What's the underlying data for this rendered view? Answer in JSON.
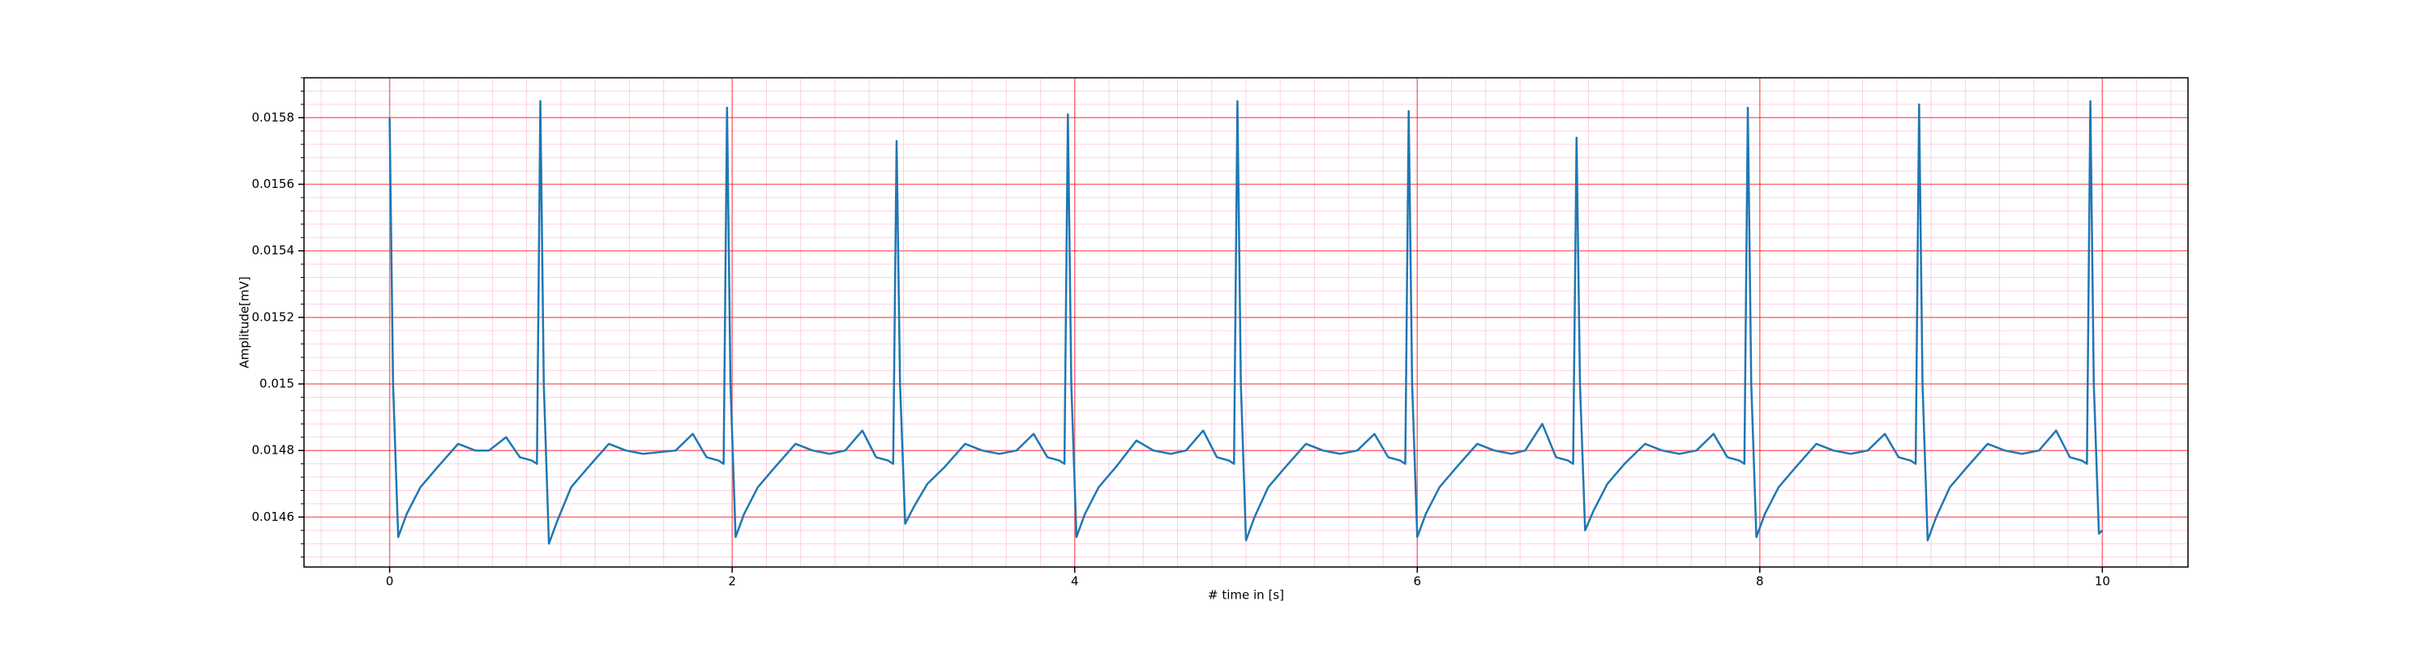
{
  "chart_data": {
    "type": "line",
    "xlabel": "# time in [s]",
    "ylabel": "Amplitude[mV]",
    "color": "#1f77b4",
    "grid": true,
    "grid_color": "#ff0000",
    "minor_grid_color": "#ffb0d0",
    "xlim": [
      -0.5,
      10.5
    ],
    "xticks": [
      0,
      2,
      4,
      6,
      8,
      10
    ],
    "ylim": [
      0.01445,
      0.01592
    ],
    "yticks": [
      0.0146,
      0.0148,
      0.015,
      0.0152,
      0.0154,
      0.0156,
      0.0158
    ],
    "x": [
      0,
      0.02,
      0.05,
      0.1,
      0.18,
      0.28,
      0.4,
      0.5,
      0.58,
      0.68,
      0.76,
      0.83,
      0.86,
      0.88,
      0.9,
      0.93,
      0.98,
      1.06,
      1.16,
      1.28,
      1.38,
      1.48,
      1.67,
      1.77,
      1.85,
      1.92,
      1.95,
      1.97,
      1.99,
      2.02,
      2.07,
      2.15,
      2.25,
      2.37,
      2.47,
      2.57,
      2.66,
      2.76,
      2.84,
      2.91,
      2.94,
      2.96,
      2.98,
      3.01,
      3.06,
      3.14,
      3.24,
      3.36,
      3.46,
      3.56,
      3.66,
      3.76,
      3.84,
      3.91,
      3.94,
      3.96,
      3.98,
      4.01,
      4.06,
      4.14,
      4.24,
      4.36,
      4.46,
      4.56,
      4.65,
      4.75,
      4.83,
      4.9,
      4.93,
      4.95,
      4.97,
      5.0,
      5.05,
      5.13,
      5.23,
      5.35,
      5.45,
      5.55,
      5.65,
      5.75,
      5.83,
      5.9,
      5.93,
      5.95,
      5.97,
      6.0,
      6.05,
      6.13,
      6.23,
      6.35,
      6.45,
      6.55,
      6.63,
      6.73,
      6.81,
      6.88,
      6.91,
      6.93,
      6.95,
      6.98,
      7.03,
      7.11,
      7.21,
      7.33,
      7.43,
      7.53,
      7.63,
      7.73,
      7.81,
      7.88,
      7.91,
      7.93,
      7.95,
      7.98,
      8.03,
      8.11,
      8.21,
      8.33,
      8.43,
      8.53,
      8.63,
      8.73,
      8.81,
      8.88,
      8.91,
      8.93,
      8.95,
      8.98,
      9.03,
      9.11,
      9.21,
      9.33,
      9.43,
      9.53,
      9.63,
      9.73,
      9.81,
      9.88,
      9.91,
      9.93,
      9.95,
      9.98,
      10.0
    ],
    "values": [
      0.0158,
      0.015,
      0.01454,
      0.01461,
      0.01469,
      0.01475,
      0.01482,
      0.0148,
      0.0148,
      0.01484,
      0.01478,
      0.01477,
      0.01476,
      0.01585,
      0.015,
      0.01452,
      0.01459,
      0.01469,
      0.01475,
      0.01482,
      0.0148,
      0.01479,
      0.0148,
      0.01485,
      0.01478,
      0.01477,
      0.01476,
      0.01583,
      0.015,
      0.01454,
      0.01461,
      0.01469,
      0.01475,
      0.01482,
      0.0148,
      0.01479,
      0.0148,
      0.01486,
      0.01478,
      0.01477,
      0.01476,
      0.01573,
      0.015,
      0.01458,
      0.01463,
      0.0147,
      0.01475,
      0.01482,
      0.0148,
      0.01479,
      0.0148,
      0.01485,
      0.01478,
      0.01477,
      0.01476,
      0.01581,
      0.015,
      0.01454,
      0.01461,
      0.01469,
      0.01475,
      0.01483,
      0.0148,
      0.01479,
      0.0148,
      0.01486,
      0.01478,
      0.01477,
      0.01476,
      0.01585,
      0.015,
      0.01453,
      0.0146,
      0.01469,
      0.01475,
      0.01482,
      0.0148,
      0.01479,
      0.0148,
      0.01485,
      0.01478,
      0.01477,
      0.01476,
      0.01582,
      0.015,
      0.01454,
      0.01461,
      0.01469,
      0.01475,
      0.01482,
      0.0148,
      0.01479,
      0.0148,
      0.01488,
      0.01478,
      0.01477,
      0.01476,
      0.01574,
      0.015,
      0.01456,
      0.01462,
      0.0147,
      0.01476,
      0.01482,
      0.0148,
      0.01479,
      0.0148,
      0.01485,
      0.01478,
      0.01477,
      0.01476,
      0.01583,
      0.015,
      0.01454,
      0.01461,
      0.01469,
      0.01475,
      0.01482,
      0.0148,
      0.01479,
      0.0148,
      0.01485,
      0.01478,
      0.01477,
      0.01476,
      0.01584,
      0.015,
      0.01453,
      0.0146,
      0.01469,
      0.01475,
      0.01482,
      0.0148,
      0.01479,
      0.0148,
      0.01486,
      0.01478,
      0.01477,
      0.01476,
      0.01585,
      0.015,
      0.01455,
      0.01456
    ]
  }
}
